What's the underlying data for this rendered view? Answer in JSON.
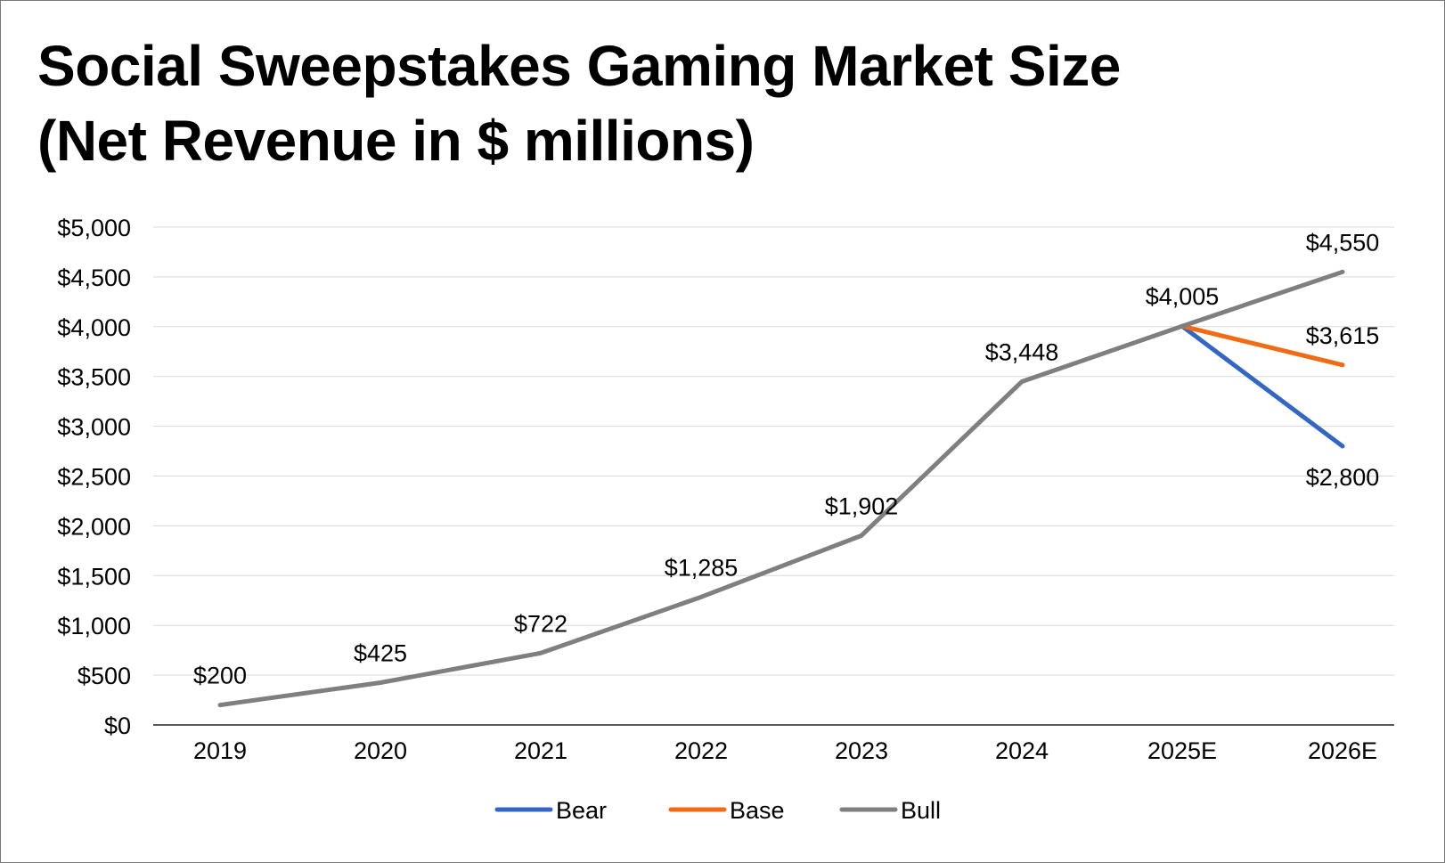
{
  "title_line1": "Social Sweepstakes Gaming Market Size",
  "title_line2": "(Net Revenue in $ millions)",
  "chart_data": {
    "type": "line",
    "categories": [
      "2019",
      "2020",
      "2021",
      "2022",
      "2023",
      "2024",
      "2025E",
      "2026E"
    ],
    "ylim": [
      0,
      5000
    ],
    "yticks": [
      0,
      500,
      1000,
      1500,
      2000,
      2500,
      3000,
      3500,
      4000,
      4500,
      5000
    ],
    "ytick_labels": [
      "$0",
      "$500",
      "$1,000",
      "$1,500",
      "$2,000",
      "$2,500",
      "$3,000",
      "$3,500",
      "$4,000",
      "$4,500",
      "$5,000"
    ],
    "grid": true,
    "legend_position": "bottom",
    "series": [
      {
        "name": "Bear",
        "color": "#3467c4",
        "values": [
          null,
          null,
          null,
          null,
          null,
          null,
          4005,
          2800
        ]
      },
      {
        "name": "Base",
        "color": "#f26a13",
        "values": [
          null,
          null,
          null,
          null,
          null,
          null,
          4005,
          3615
        ]
      },
      {
        "name": "Bull",
        "color": "#7f7f7f",
        "values": [
          200,
          425,
          722,
          1285,
          1902,
          3448,
          4005,
          4550
        ]
      }
    ],
    "data_labels": [
      {
        "category": "2019",
        "value": 200,
        "text": "$200"
      },
      {
        "category": "2020",
        "value": 425,
        "text": "$425"
      },
      {
        "category": "2021",
        "value": 722,
        "text": "$722"
      },
      {
        "category": "2022",
        "value": 1285,
        "text": "$1,285"
      },
      {
        "category": "2023",
        "value": 1902,
        "text": "$1,902"
      },
      {
        "category": "2024",
        "value": 3448,
        "text": "$3,448"
      },
      {
        "category": "2025E",
        "value": 4005,
        "text": "$4,005"
      },
      {
        "category": "2026E",
        "value": 4550,
        "text": "$4,550"
      },
      {
        "category": "2026E",
        "value": 3615,
        "text": "$3,615"
      },
      {
        "category": "2026E",
        "value": 2800,
        "text": "$2,800"
      }
    ]
  }
}
